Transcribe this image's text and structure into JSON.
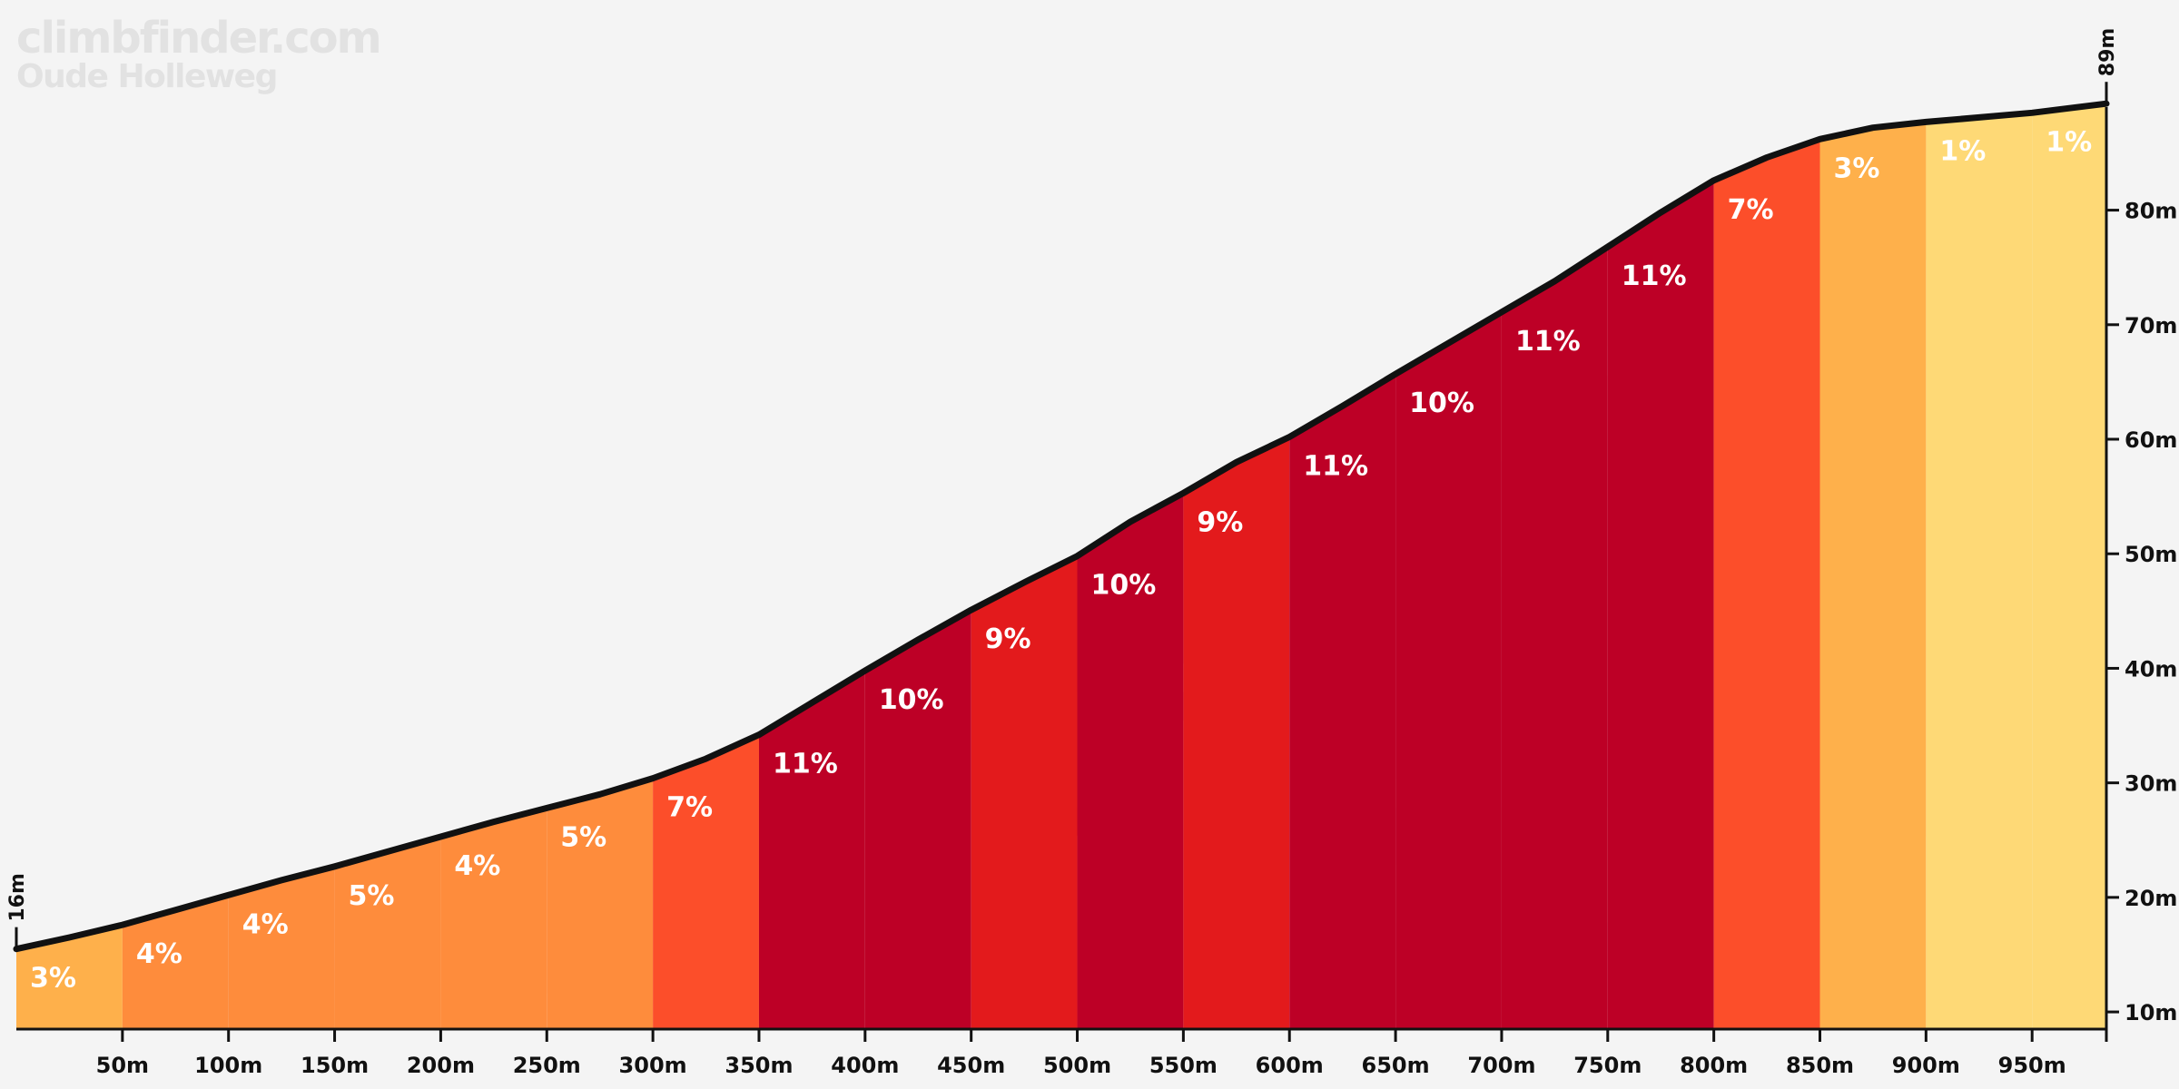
{
  "watermark": {
    "site": "climbfinder.com",
    "climb_name": "Oude Holleweg"
  },
  "chart_data": {
    "type": "area",
    "title": "",
    "xlabel": "",
    "ylabel": "",
    "xlim": [
      0,
      985
    ],
    "ylim": [
      8.5,
      89
    ],
    "grid": false,
    "start_elevation_label": "16m",
    "end_elevation_label": "89m",
    "profile": {
      "distance_m": [
        0,
        25,
        50,
        75,
        100,
        125,
        150,
        175,
        200,
        225,
        250,
        275,
        300,
        325,
        350,
        375,
        400,
        425,
        450,
        475,
        500,
        525,
        550,
        575,
        600,
        625,
        650,
        675,
        700,
        725,
        750,
        775,
        800,
        825,
        850,
        875,
        900,
        925,
        950,
        985
      ],
      "elevation_m": [
        15.5,
        16.5,
        17.6,
        18.9,
        20.2,
        21.5,
        22.7,
        24.0,
        25.3,
        26.6,
        27.8,
        29.0,
        30.4,
        32.1,
        34.2,
        37.0,
        39.8,
        42.5,
        45.1,
        47.5,
        49.8,
        52.8,
        55.3,
        58.0,
        60.2,
        62.9,
        65.7,
        68.4,
        71.1,
        73.8,
        76.8,
        79.8,
        82.6,
        84.6,
        86.2,
        87.2,
        87.7,
        88.1,
        88.5,
        89.3
      ]
    },
    "segments": [
      {
        "start_m": 0,
        "end_m": 50,
        "gradient_label": "3%",
        "color": "#feb04b"
      },
      {
        "start_m": 50,
        "end_m": 100,
        "gradient_label": "4%",
        "color": "#fe8c3c"
      },
      {
        "start_m": 100,
        "end_m": 150,
        "gradient_label": "4%",
        "color": "#fe8c3c"
      },
      {
        "start_m": 150,
        "end_m": 200,
        "gradient_label": "5%",
        "color": "#fe8c3c"
      },
      {
        "start_m": 200,
        "end_m": 250,
        "gradient_label": "4%",
        "color": "#fe8c3c"
      },
      {
        "start_m": 250,
        "end_m": 300,
        "gradient_label": "5%",
        "color": "#fe8c3c"
      },
      {
        "start_m": 300,
        "end_m": 350,
        "gradient_label": "7%",
        "color": "#fc4e2a"
      },
      {
        "start_m": 350,
        "end_m": 400,
        "gradient_label": "11%",
        "color": "#bd0026"
      },
      {
        "start_m": 400,
        "end_m": 450,
        "gradient_label": "10%",
        "color": "#bd0026"
      },
      {
        "start_m": 450,
        "end_m": 500,
        "gradient_label": "9%",
        "color": "#e31a1c"
      },
      {
        "start_m": 500,
        "end_m": 550,
        "gradient_label": "10%",
        "color": "#bd0026"
      },
      {
        "start_m": 550,
        "end_m": 600,
        "gradient_label": "9%",
        "color": "#e31a1c"
      },
      {
        "start_m": 600,
        "end_m": 650,
        "gradient_label": "11%",
        "color": "#bd0026"
      },
      {
        "start_m": 650,
        "end_m": 700,
        "gradient_label": "10%",
        "color": "#bd0026"
      },
      {
        "start_m": 700,
        "end_m": 750,
        "gradient_label": "11%",
        "color": "#bd0026"
      },
      {
        "start_m": 750,
        "end_m": 800,
        "gradient_label": "11%",
        "color": "#bd0026"
      },
      {
        "start_m": 800,
        "end_m": 850,
        "gradient_label": "7%",
        "color": "#fc4e2a"
      },
      {
        "start_m": 850,
        "end_m": 900,
        "gradient_label": "3%",
        "color": "#feb04b"
      },
      {
        "start_m": 900,
        "end_m": 950,
        "gradient_label": "1%",
        "color": "#fed976"
      },
      {
        "start_m": 950,
        "end_m": 985,
        "gradient_label": "1%",
        "color": "#fed976"
      }
    ],
    "x_ticks": [
      {
        "value": 50,
        "label": "50m"
      },
      {
        "value": 100,
        "label": "100m"
      },
      {
        "value": 150,
        "label": "150m"
      },
      {
        "value": 200,
        "label": "200m"
      },
      {
        "value": 250,
        "label": "250m"
      },
      {
        "value": 300,
        "label": "300m"
      },
      {
        "value": 350,
        "label": "350m"
      },
      {
        "value": 400,
        "label": "400m"
      },
      {
        "value": 450,
        "label": "450m"
      },
      {
        "value": 500,
        "label": "500m"
      },
      {
        "value": 550,
        "label": "550m"
      },
      {
        "value": 600,
        "label": "600m"
      },
      {
        "value": 650,
        "label": "650m"
      },
      {
        "value": 700,
        "label": "700m"
      },
      {
        "value": 750,
        "label": "750m"
      },
      {
        "value": 800,
        "label": "800m"
      },
      {
        "value": 850,
        "label": "850m"
      },
      {
        "value": 900,
        "label": "900m"
      },
      {
        "value": 950,
        "label": "950m"
      }
    ],
    "y_ticks": [
      {
        "value": 10,
        "label": "10m"
      },
      {
        "value": 20,
        "label": "20m"
      },
      {
        "value": 30,
        "label": "30m"
      },
      {
        "value": 40,
        "label": "40m"
      },
      {
        "value": 50,
        "label": "50m"
      },
      {
        "value": 60,
        "label": "60m"
      },
      {
        "value": 70,
        "label": "70m"
      },
      {
        "value": 80,
        "label": "80m"
      }
    ]
  }
}
